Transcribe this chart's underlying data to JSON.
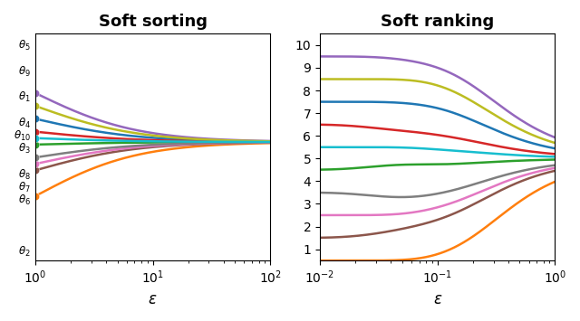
{
  "theta_values": [
    0.7,
    0.1,
    0.5,
    0.6,
    0.9,
    0.3,
    0.35,
    0.4,
    0.8,
    0.55
  ],
  "theta_names": [
    "1",
    "2",
    "3",
    "4",
    "5",
    "6",
    "7",
    "8",
    "9",
    "10"
  ],
  "colors": [
    "#1f77b4",
    "#ff7f0e",
    "#2ca02c",
    "#d62728",
    "#9467bd",
    "#8c564b",
    "#e377c2",
    "#7f7f7f",
    "#bcbd22",
    "#17becf"
  ],
  "title_left": "Soft sorting",
  "title_right": "Soft ranking",
  "xlabel": "\\varepsilon",
  "sort_eps_log_range": [
    0,
    2
  ],
  "rank_eps_log_range": [
    -2,
    0
  ],
  "n_points": 300
}
